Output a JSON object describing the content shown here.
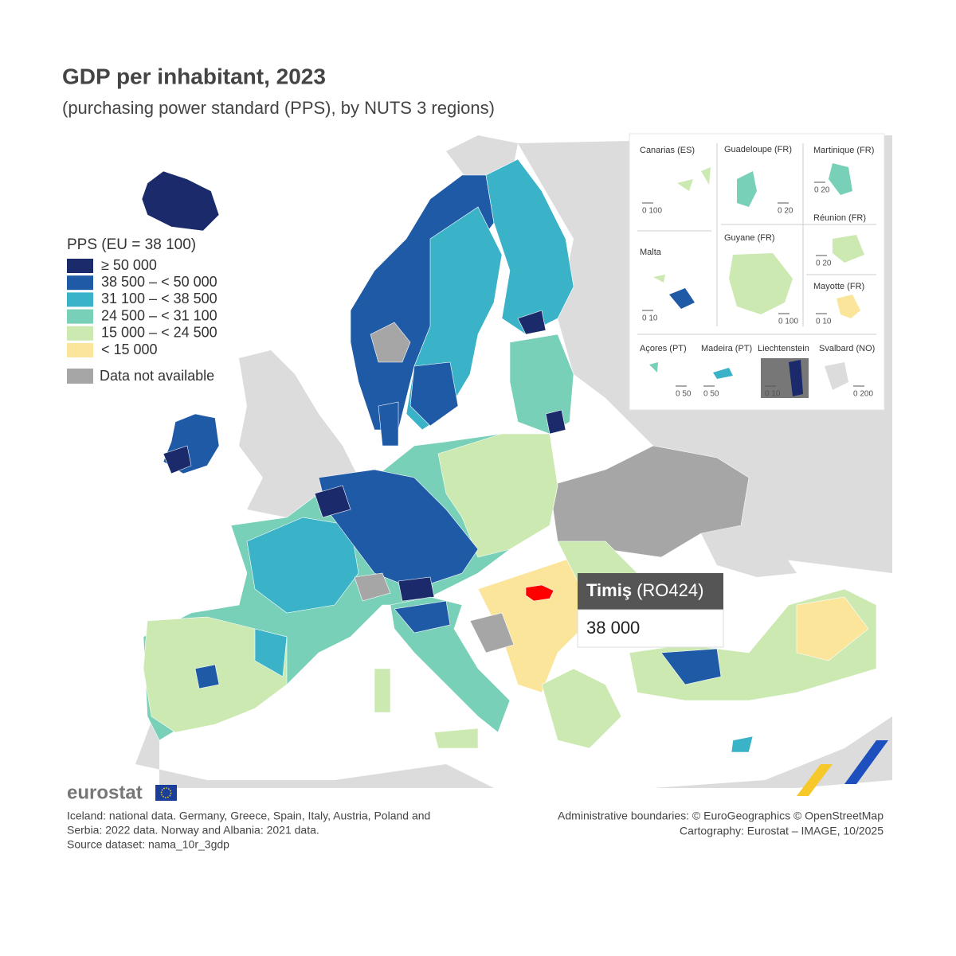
{
  "header": {
    "title": "GDP per inhabitant, 2023",
    "subtitle": "(purchasing power standard (PPS), by NUTS 3 regions)"
  },
  "legend": {
    "title": "PPS (EU = 38 100)",
    "items": [
      {
        "label": "≥ 50 000",
        "color": "#1b2a6b"
      },
      {
        "label": "38 500 – < 50 000",
        "color": "#1f5aa6"
      },
      {
        "label": "31 100 – < 38 500",
        "color": "#3ab2c8"
      },
      {
        "label": "24 500 – < 31 100",
        "color": "#78d0b8"
      },
      {
        "label": "15 000 – < 24 500",
        "color": "#cbe9b0"
      },
      {
        "label": "< 15 000",
        "color": "#fbe59a"
      }
    ],
    "na": {
      "label": "Data not available",
      "color": "#a6a6a6"
    }
  },
  "tooltip": {
    "region": "Timiş",
    "code": "(RO424)",
    "value": "38 000",
    "highlight": "#ff0000"
  },
  "insets": [
    {
      "label": "Canarias (ES)",
      "scale": "0 100"
    },
    {
      "label": "Guadeloupe (FR)",
      "scale": "0 20"
    },
    {
      "label": "Martinique (FR)",
      "scale": "0 20"
    },
    {
      "label": "Réunion (FR)",
      "scale": "0 20"
    },
    {
      "label": "Malta",
      "scale": "0 10"
    },
    {
      "label": "Guyane (FR)",
      "scale": "0 100"
    },
    {
      "label": "Mayotte (FR)",
      "scale": "0 10"
    },
    {
      "label": "Açores (PT)",
      "scale": "0 50"
    },
    {
      "label": "Madeira (PT)",
      "scale": "0 50"
    },
    {
      "label": "Liechtenstein",
      "scale": "0 10"
    },
    {
      "label": "Svalbard (NO)",
      "scale": "0 200"
    }
  ],
  "brand": "eurostat",
  "notes": {
    "left": [
      "Iceland: national data. Germany, Greece, Spain, Italy, Austria, Poland and",
      "Serbia: 2022 data. Norway and Albania: 2021 data.",
      "Source dataset: nama_10r_3gdp"
    ],
    "right": [
      "Administrative boundaries: © EuroGeographics © OpenStreetMap",
      "Cartography: Eurostat – IMAGE, 10/2025"
    ]
  }
}
